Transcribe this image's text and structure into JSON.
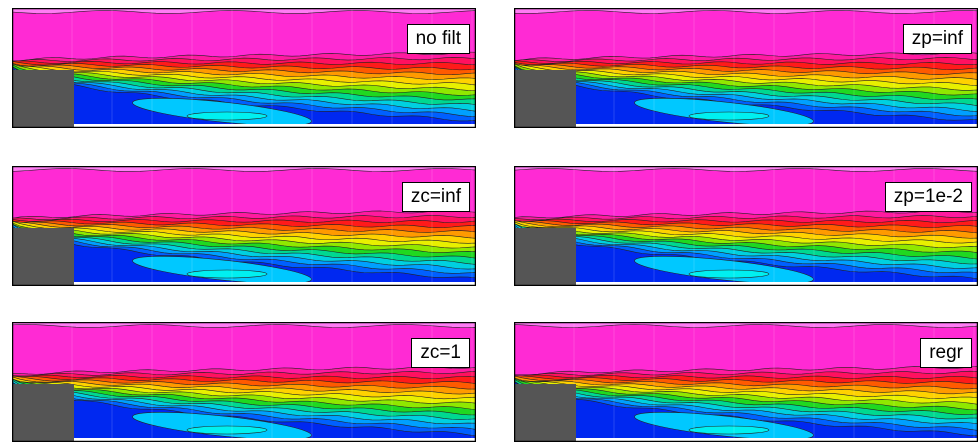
{
  "panels": [
    {
      "label": "no filt"
    },
    {
      "label": "zp=inf"
    },
    {
      "label": "zc=inf"
    },
    {
      "label": "zp=1e-2"
    },
    {
      "label": "zc=1"
    },
    {
      "label": "regr"
    }
  ]
}
